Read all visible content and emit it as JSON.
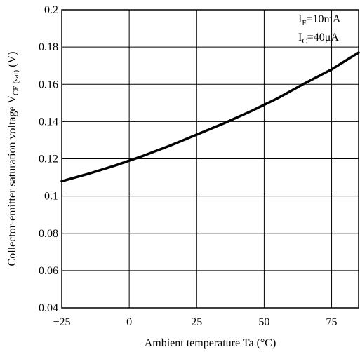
{
  "chart_data": {
    "type": "line",
    "title": "",
    "xlabel": "Ambient temperature Ta (°C)",
    "ylabel": {
      "main": "Collector-emitter saturation voltage V",
      "subscript": "CE (sat)",
      "unit": " (V)"
    },
    "xlim": [
      -25,
      85
    ],
    "ylim": [
      0.04,
      0.2
    ],
    "x_ticks": [
      -25,
      0,
      25,
      50,
      75
    ],
    "x_tick_labels": [
      "−25",
      "0",
      "25",
      "50",
      "75"
    ],
    "y_ticks": [
      0.04,
      0.06,
      0.08,
      0.1,
      0.12,
      0.14,
      0.16,
      0.18,
      0.2
    ],
    "y_tick_labels": [
      "0.04",
      "0.06",
      "0.08",
      "0.1",
      "0.12",
      "0.14",
      "0.16",
      "0.18",
      "0.2"
    ],
    "grid": true,
    "annotations": [
      {
        "main": "I",
        "subscript": "F",
        "rest": "=10mA"
      },
      {
        "main": "I",
        "subscript": "C",
        "rest": "=40μA"
      }
    ],
    "series": [
      {
        "x": [
          -25,
          -15,
          -5,
          0,
          5,
          15,
          25,
          35,
          45,
          50,
          55,
          65,
          75,
          85
        ],
        "y": [
          0.108,
          0.112,
          0.1165,
          0.119,
          0.1215,
          0.127,
          0.133,
          0.139,
          0.1455,
          0.149,
          0.1525,
          0.1605,
          0.168,
          0.177
        ]
      }
    ]
  }
}
